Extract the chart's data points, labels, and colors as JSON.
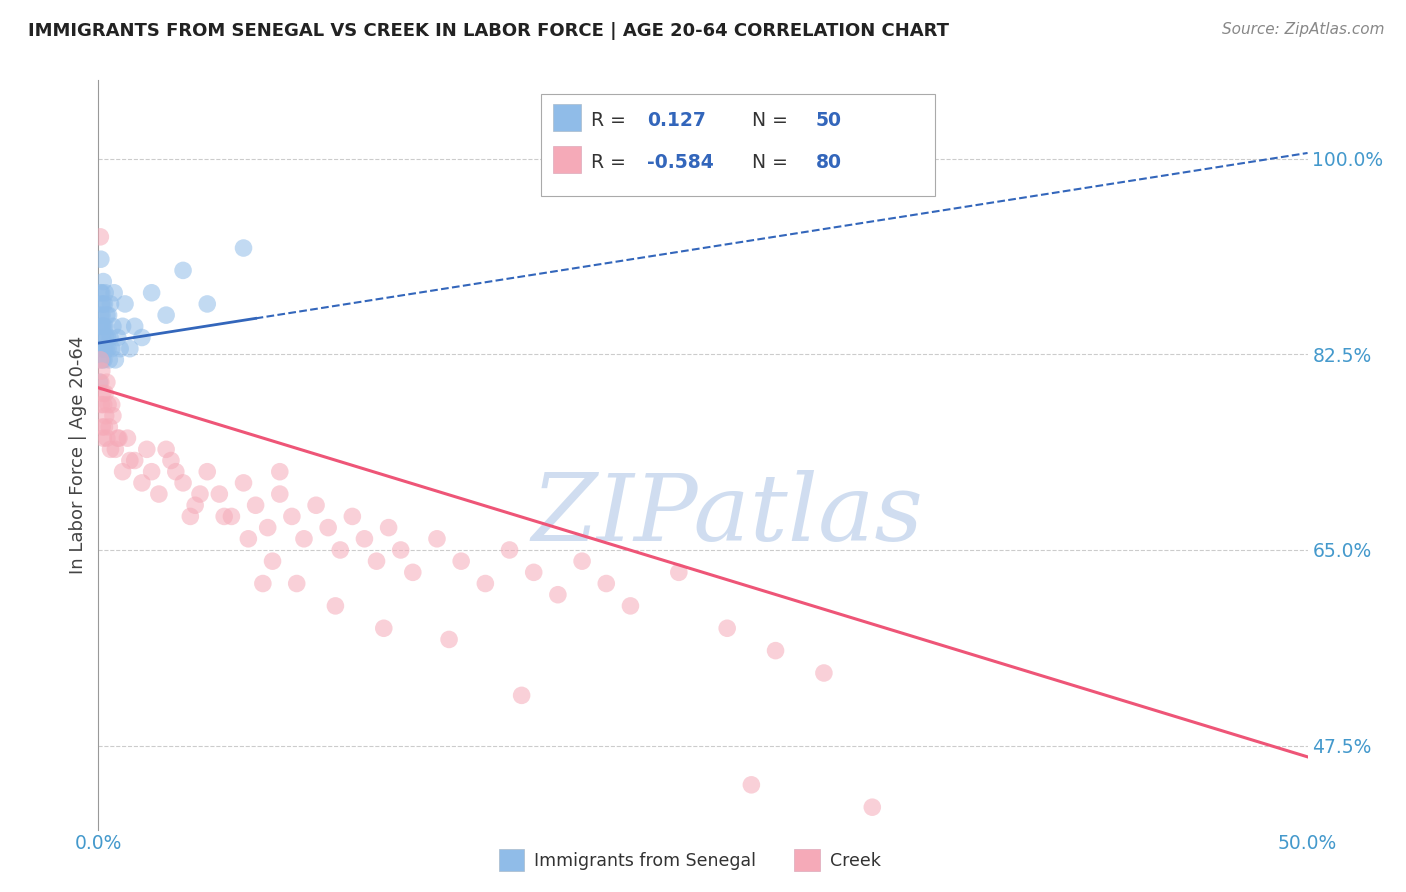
{
  "title": "IMMIGRANTS FROM SENEGAL VS CREEK IN LABOR FORCE | AGE 20-64 CORRELATION CHART",
  "source": "Source: ZipAtlas.com",
  "ylabel": "In Labor Force | Age 20-64",
  "yticks": [
    47.5,
    65.0,
    82.5,
    100.0
  ],
  "xlim": [
    0.0,
    50.0
  ],
  "ylim": [
    40.0,
    107.0
  ],
  "blue_scatter_x": [
    0.05,
    0.07,
    0.08,
    0.09,
    0.1,
    0.1,
    0.11,
    0.12,
    0.12,
    0.13,
    0.14,
    0.15,
    0.15,
    0.16,
    0.17,
    0.18,
    0.19,
    0.2,
    0.21,
    0.22,
    0.23,
    0.25,
    0.26,
    0.27,
    0.28,
    0.3,
    0.32,
    0.35,
    0.38,
    0.4,
    0.42,
    0.45,
    0.48,
    0.5,
    0.55,
    0.6,
    0.65,
    0.7,
    0.8,
    0.9,
    1.0,
    1.1,
    1.3,
    1.5,
    1.8,
    2.2,
    2.8,
    3.5,
    4.5,
    6.0
  ],
  "blue_scatter_y": [
    80.0,
    82.0,
    85.0,
    88.0,
    91.0,
    86.0,
    84.0,
    83.0,
    87.0,
    85.0,
    88.0,
    86.0,
    83.0,
    85.0,
    82.0,
    84.0,
    87.0,
    89.0,
    85.0,
    83.0,
    82.0,
    87.0,
    83.0,
    85.0,
    88.0,
    84.0,
    83.0,
    86.0,
    84.0,
    83.0,
    86.0,
    82.0,
    84.0,
    87.0,
    83.0,
    85.0,
    88.0,
    82.0,
    84.0,
    83.0,
    85.0,
    87.0,
    83.0,
    85.0,
    84.0,
    88.0,
    86.0,
    90.0,
    87.0,
    92.0
  ],
  "pink_scatter_x": [
    0.08,
    0.09,
    0.1,
    0.12,
    0.14,
    0.16,
    0.18,
    0.2,
    0.22,
    0.25,
    0.28,
    0.3,
    0.35,
    0.4,
    0.45,
    0.5,
    0.6,
    0.7,
    0.8,
    1.0,
    1.2,
    1.5,
    1.8,
    2.0,
    2.2,
    2.5,
    3.0,
    3.5,
    4.0,
    4.5,
    5.0,
    5.5,
    6.0,
    6.5,
    7.0,
    7.5,
    8.0,
    8.5,
    9.0,
    9.5,
    10.0,
    10.5,
    11.0,
    11.5,
    12.0,
    12.5,
    13.0,
    14.0,
    15.0,
    16.0,
    17.0,
    18.0,
    19.0,
    20.0,
    21.0,
    22.0,
    24.0,
    26.0,
    28.0,
    30.0,
    3.2,
    4.2,
    5.2,
    6.2,
    7.2,
    8.2,
    2.8,
    9.8,
    14.5,
    7.5,
    0.35,
    0.55,
    0.85,
    1.3,
    3.8,
    6.8,
    11.8,
    17.5,
    27.0,
    32.0
  ],
  "pink_scatter_y": [
    93.0,
    82.0,
    80.0,
    78.0,
    81.0,
    76.0,
    79.0,
    75.0,
    78.0,
    76.0,
    79.0,
    77.0,
    75.0,
    78.0,
    76.0,
    74.0,
    77.0,
    74.0,
    75.0,
    72.0,
    75.0,
    73.0,
    71.0,
    74.0,
    72.0,
    70.0,
    73.0,
    71.0,
    69.0,
    72.0,
    70.0,
    68.0,
    71.0,
    69.0,
    67.0,
    70.0,
    68.0,
    66.0,
    69.0,
    67.0,
    65.0,
    68.0,
    66.0,
    64.0,
    67.0,
    65.0,
    63.0,
    66.0,
    64.0,
    62.0,
    65.0,
    63.0,
    61.0,
    64.0,
    62.0,
    60.0,
    63.0,
    58.0,
    56.0,
    54.0,
    72.0,
    70.0,
    68.0,
    66.0,
    64.0,
    62.0,
    74.0,
    60.0,
    57.0,
    72.0,
    80.0,
    78.0,
    75.0,
    73.0,
    68.0,
    62.0,
    58.0,
    52.0,
    44.0,
    42.0
  ],
  "blue_line_x0": 0.0,
  "blue_line_x1": 50.0,
  "blue_line_y0": 83.5,
  "blue_line_y1": 100.5,
  "blue_solid_x1": 6.5,
  "pink_line_y0": 79.5,
  "pink_line_y1": 46.5,
  "title_color": "#222222",
  "source_color": "#888888",
  "ylabel_color": "#444444",
  "tick_label_color": "#4499cc",
  "grid_color": "#cccccc",
  "blue_dot_color": "#90bce8",
  "pink_dot_color": "#f5aab8",
  "blue_line_color": "#3366bb",
  "pink_line_color": "#ee5577",
  "watermark_text": "ZIPatlas",
  "watermark_color": "#c8d8ee",
  "legend_R1": "0.127",
  "legend_N1": "50",
  "legend_R2": "-0.584",
  "legend_N2": "80",
  "legend_label1": "Immigrants from Senegal",
  "legend_label2": "Creek"
}
